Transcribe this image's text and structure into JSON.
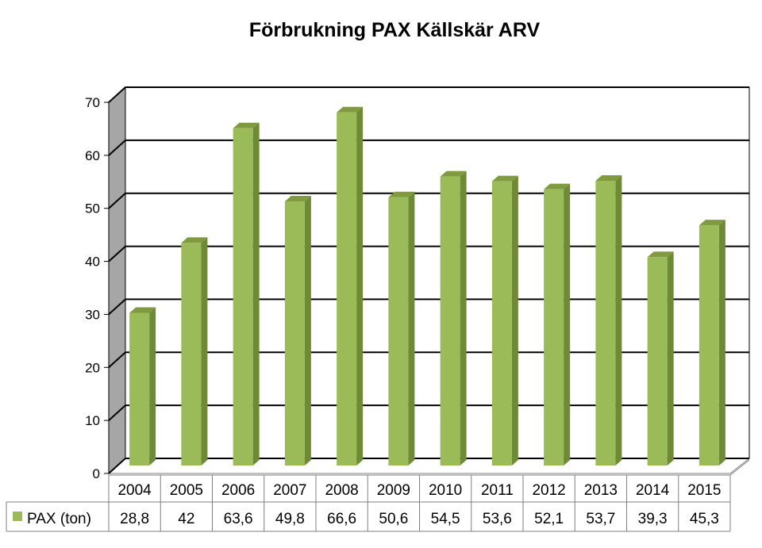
{
  "chart_data": {
    "type": "bar",
    "title": "Förbrukning PAX Källskär ARV",
    "xlabel": "",
    "ylabel": "",
    "categories": [
      "2004",
      "2005",
      "2006",
      "2007",
      "2008",
      "2009",
      "2010",
      "2011",
      "2012",
      "2013",
      "2014",
      "2015"
    ],
    "series": [
      {
        "name": "PAX (ton)",
        "values": [
          28.8,
          42,
          63.6,
          49.8,
          66.6,
          50.6,
          54.5,
          53.6,
          52.1,
          53.7,
          39.3,
          45.3
        ],
        "value_labels": [
          "28,8",
          "42",
          "63,6",
          "49,8",
          "66,6",
          "50,6",
          "54,5",
          "53,6",
          "52,1",
          "53,7",
          "39,3",
          "45,3"
        ],
        "color": "#9bbb59"
      }
    ],
    "ylim": [
      0,
      70
    ],
    "yticks": [
      "0",
      "10",
      "20",
      "30",
      "40",
      "50",
      "60",
      "70"
    ],
    "grid": true,
    "data_table": true,
    "colors": {
      "bar_front": "#9bbb59",
      "bar_side": "#6e8a35",
      "bar_top": "#7f9a3f",
      "wall": "#a6a6a6"
    }
  }
}
